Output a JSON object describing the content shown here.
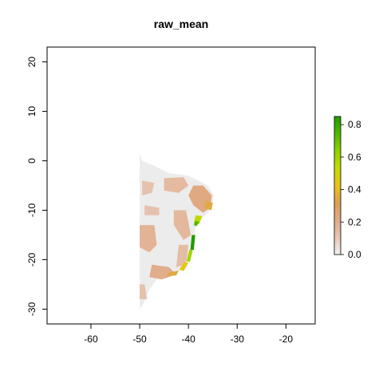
{
  "chart_data": {
    "type": "heatmap",
    "title": "raw_mean",
    "xlabel": "",
    "ylabel": "",
    "xlim": [
      -69,
      -14
    ],
    "ylim": [
      -33,
      23
    ],
    "x_ticks": [
      -60,
      -50,
      -40,
      -30,
      -20
    ],
    "y_ticks": [
      20,
      10,
      0,
      -10,
      -20,
      -30
    ],
    "legend": {
      "position": "right",
      "min": 0.0,
      "max": 0.85,
      "ticks": [
        "0.8",
        "0.6",
        "0.4",
        "0.2",
        "0.0"
      ],
      "tick_values": [
        0.8,
        0.6,
        0.4,
        0.2,
        0.0
      ],
      "colors": [
        "#f2f2f2",
        "#e7c6b4",
        "#e0aa86",
        "#dd9f52",
        "#e9c21a",
        "#c6dc00",
        "#8ed200",
        "#4fb800",
        "#229a00"
      ]
    },
    "background_color": "#ececec",
    "land_outline": [
      [
        -50,
        1.5
      ],
      [
        -49.5,
        0
      ],
      [
        -47,
        -1
      ],
      [
        -44,
        -2.5
      ],
      [
        -40,
        -3
      ],
      [
        -38,
        -4
      ],
      [
        -36,
        -5
      ],
      [
        -34.8,
        -7
      ],
      [
        -35,
        -9
      ],
      [
        -36,
        -10.5
      ],
      [
        -37.5,
        -12
      ],
      [
        -38.5,
        -13.5
      ],
      [
        -39,
        -16
      ],
      [
        -39.5,
        -18
      ],
      [
        -40.5,
        -20
      ],
      [
        -41.5,
        -22
      ],
      [
        -44,
        -23
      ],
      [
        -46.5,
        -24
      ],
      [
        -48,
        -26
      ],
      [
        -49,
        -28.5
      ],
      [
        -50,
        -30
      ],
      [
        -50,
        1.5
      ]
    ],
    "patches": [
      {
        "value": 0.22,
        "points": [
          [
            -39,
            -5
          ],
          [
            -37,
            -5
          ],
          [
            -35.2,
            -7
          ],
          [
            -35.5,
            -9.5
          ],
          [
            -37,
            -10.5
          ],
          [
            -39,
            -9
          ],
          [
            -40,
            -7
          ]
        ]
      },
      {
        "value": 0.15,
        "points": [
          [
            -45,
            -3.5
          ],
          [
            -41,
            -3.3
          ],
          [
            -40,
            -5
          ],
          [
            -42,
            -6.5
          ],
          [
            -45,
            -6
          ]
        ]
      },
      {
        "value": 0.18,
        "points": [
          [
            -50,
            -13
          ],
          [
            -47,
            -13
          ],
          [
            -46.5,
            -17
          ],
          [
            -48,
            -18.5
          ],
          [
            -50,
            -17.5
          ]
        ]
      },
      {
        "value": 0.16,
        "points": [
          [
            -43,
            -10
          ],
          [
            -40.5,
            -10
          ],
          [
            -39.5,
            -15
          ],
          [
            -41,
            -16
          ],
          [
            -43,
            -13
          ]
        ]
      },
      {
        "value": 0.14,
        "points": [
          [
            -42,
            -17
          ],
          [
            -40,
            -17
          ],
          [
            -40.5,
            -21
          ],
          [
            -42.5,
            -21.5
          ]
        ]
      },
      {
        "value": 0.2,
        "points": [
          [
            -47.5,
            -21
          ],
          [
            -44,
            -21.5
          ],
          [
            -42.5,
            -23
          ],
          [
            -45.5,
            -24
          ],
          [
            -48,
            -23.5
          ]
        ]
      },
      {
        "value": 0.13,
        "points": [
          [
            -50,
            -25
          ],
          [
            -49,
            -25
          ],
          [
            -48.5,
            -28
          ],
          [
            -50,
            -28
          ]
        ]
      },
      {
        "value": 0.12,
        "points": [
          [
            -49.5,
            -4
          ],
          [
            -47,
            -4.5
          ],
          [
            -47.5,
            -6.5
          ],
          [
            -49.5,
            -7
          ]
        ]
      },
      {
        "value": 0.12,
        "points": [
          [
            -49,
            -9
          ],
          [
            -46,
            -9.5
          ],
          [
            -46,
            -11
          ],
          [
            -49,
            -11
          ]
        ]
      }
    ],
    "coast_band": [
      {
        "value": 0.35,
        "points": [
          [
            -36.5,
            -8
          ],
          [
            -35,
            -8.5
          ],
          [
            -35.3,
            -10
          ],
          [
            -36.7,
            -9.6
          ]
        ]
      },
      {
        "value": 0.55,
        "points": [
          [
            -38.5,
            -11
          ],
          [
            -37.2,
            -11.2
          ],
          [
            -37.8,
            -12.8
          ],
          [
            -38.9,
            -12.6
          ]
        ]
      },
      {
        "value": 0.75,
        "points": [
          [
            -38.6,
            -12.2
          ],
          [
            -37.8,
            -12.3
          ],
          [
            -38.3,
            -13.2
          ],
          [
            -38.9,
            -13
          ]
        ]
      },
      {
        "value": 0.85,
        "points": [
          [
            -39.3,
            -15
          ],
          [
            -38.6,
            -15
          ],
          [
            -38.9,
            -18
          ],
          [
            -39.6,
            -18
          ]
        ]
      },
      {
        "value": 0.6,
        "points": [
          [
            -39.8,
            -18
          ],
          [
            -39.1,
            -18
          ],
          [
            -39.7,
            -20.5
          ],
          [
            -40.4,
            -20.3
          ]
        ]
      },
      {
        "value": 0.45,
        "points": [
          [
            -40.8,
            -20.5
          ],
          [
            -40,
            -20.6
          ],
          [
            -41,
            -22.3
          ],
          [
            -41.9,
            -22
          ]
        ]
      },
      {
        "value": 0.35,
        "points": [
          [
            -44,
            -22.6
          ],
          [
            -42,
            -22.2
          ],
          [
            -42.5,
            -23.2
          ],
          [
            -44.5,
            -23.3
          ]
        ]
      }
    ]
  }
}
